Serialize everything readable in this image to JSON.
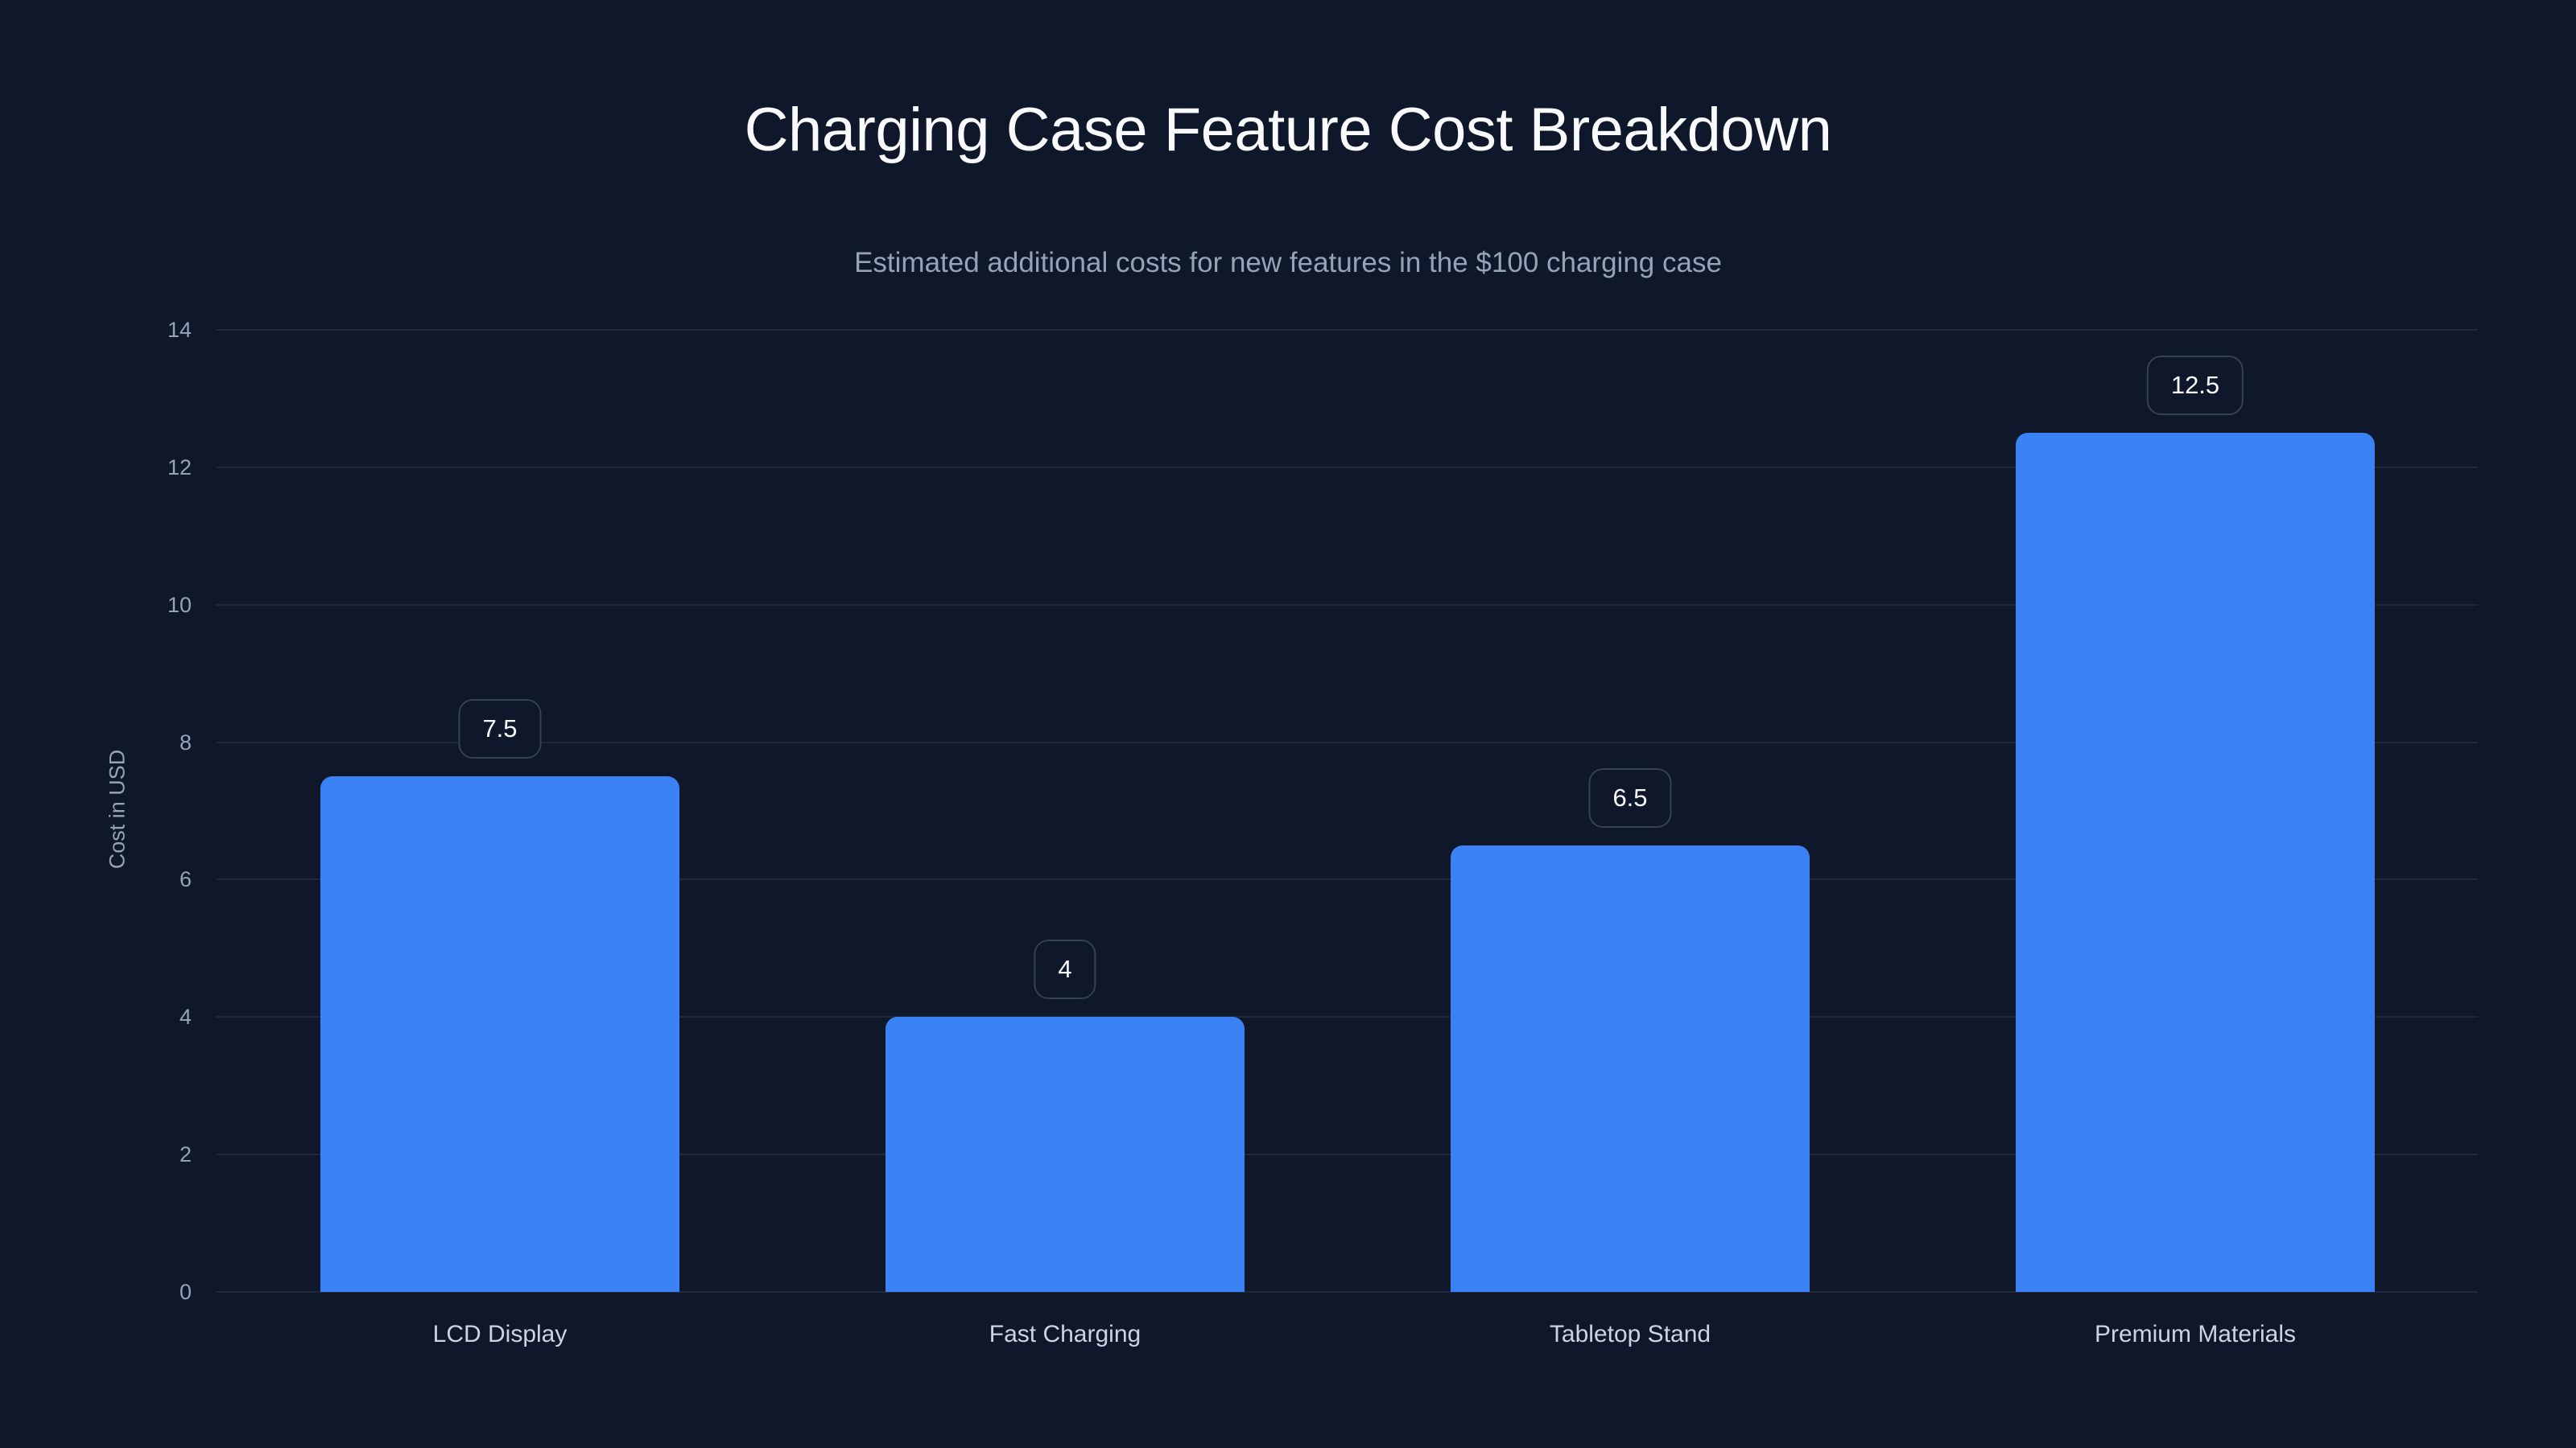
{
  "chart_data": {
    "type": "bar",
    "title": "Charging Case Feature Cost Breakdown",
    "subtitle": "Estimated additional costs for new features in the $100 charging case",
    "xlabel": "",
    "ylabel": "Cost in USD",
    "categories": [
      "LCD Display",
      "Fast Charging",
      "Tabletop Stand",
      "Premium Materials"
    ],
    "values": [
      7.5,
      4,
      6.5,
      12.5
    ],
    "value_labels": [
      "7.5",
      "4",
      "6.5",
      "12.5"
    ],
    "ylim": [
      0,
      14
    ],
    "yticks": [
      0,
      2,
      4,
      6,
      8,
      10,
      12,
      14
    ],
    "grid": true,
    "legend": null,
    "colors": {
      "bar": "#3b82f6",
      "background": "#0f172a",
      "grid": "#1e293b"
    }
  }
}
